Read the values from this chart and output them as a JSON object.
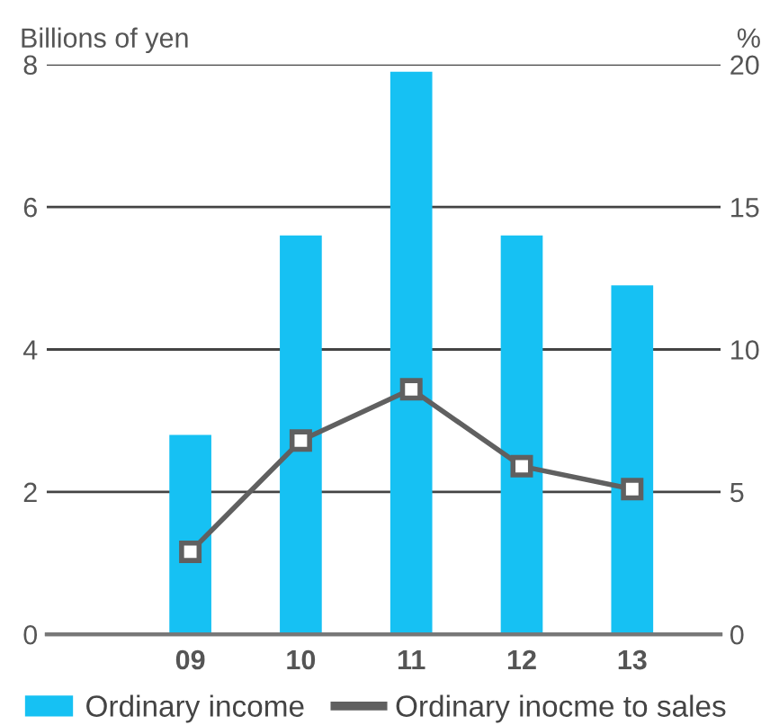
{
  "chart_data": {
    "type": "bar",
    "categories": [
      "09",
      "10",
      "11",
      "12",
      "13"
    ],
    "ylabel": "Billions of yen",
    "y2label": "%",
    "ylim": [
      0,
      8
    ],
    "yticks": [
      0,
      2,
      4,
      6,
      8
    ],
    "y2lim": [
      0,
      20
    ],
    "y2ticks": [
      0,
      5,
      10,
      15,
      20
    ],
    "grid": "y",
    "legend": "bottom",
    "series": [
      {
        "name": "Ordinary income",
        "color": "#16c1f3",
        "values": [
          2.8,
          5.6,
          7.9,
          5.6,
          4.9
        ]
      },
      {
        "name": "Ordinary inocme to sales",
        "type": "line",
        "axis": "y2",
        "color": "#606060",
        "marker": "square",
        "values": [
          2.9,
          6.8,
          8.6,
          5.9,
          5.1
        ]
      }
    ]
  }
}
